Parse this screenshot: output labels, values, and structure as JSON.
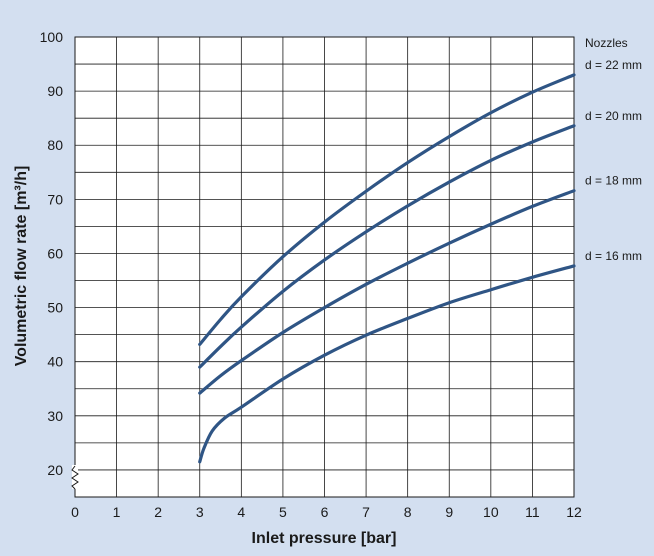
{
  "chart_data": {
    "type": "line",
    "title": "",
    "xlabel": "Inlet pressure [bar]",
    "ylabel": "Volumetric flow rate [m³/h]",
    "legend_title": "Nozzles",
    "xlim": [
      0,
      12
    ],
    "ylim": [
      20,
      100
    ],
    "x_ticks": [
      0,
      1,
      2,
      3,
      4,
      5,
      6,
      7,
      8,
      9,
      10,
      11,
      12
    ],
    "y_ticks": [
      20,
      30,
      40,
      50,
      60,
      70,
      80,
      90,
      100
    ],
    "y_axis_break": true,
    "grid": true,
    "legend_placement": "right, at curve ends",
    "line_color": "#2f5585",
    "background_color": "#d3dff0",
    "plot_background": "#ffffff",
    "series": [
      {
        "name": "d = 22 mm",
        "x": [
          3,
          3.5,
          4,
          5,
          6,
          7,
          8,
          9,
          10,
          11,
          12
        ],
        "y": [
          43.2,
          47.8,
          52.0,
          59.4,
          65.8,
          71.5,
          76.8,
          81.6,
          86.0,
          89.8,
          93.0
        ]
      },
      {
        "name": "d = 20 mm",
        "x": [
          3,
          3.5,
          4,
          5,
          6,
          7,
          8,
          9,
          10,
          11,
          12
        ],
        "y": [
          39.0,
          42.8,
          46.4,
          53.0,
          58.8,
          64.0,
          68.8,
          73.2,
          77.2,
          80.6,
          83.6
        ]
      },
      {
        "name": "d = 18 mm",
        "x": [
          3,
          3.5,
          4,
          5,
          6,
          7,
          8,
          9,
          10,
          11,
          12
        ],
        "y": [
          34.2,
          37.4,
          40.2,
          45.4,
          50.0,
          54.3,
          58.2,
          61.9,
          65.4,
          68.7,
          71.6
        ]
      },
      {
        "name": "d = 16 mm",
        "x": [
          3,
          3.1,
          3.3,
          3.6,
          4,
          5,
          6,
          7,
          8,
          9,
          10,
          11,
          12
        ],
        "y": [
          21.5,
          24.0,
          27.2,
          29.6,
          31.6,
          36.8,
          41.2,
          44.9,
          48.0,
          50.9,
          53.3,
          55.6,
          57.7
        ]
      }
    ]
  }
}
